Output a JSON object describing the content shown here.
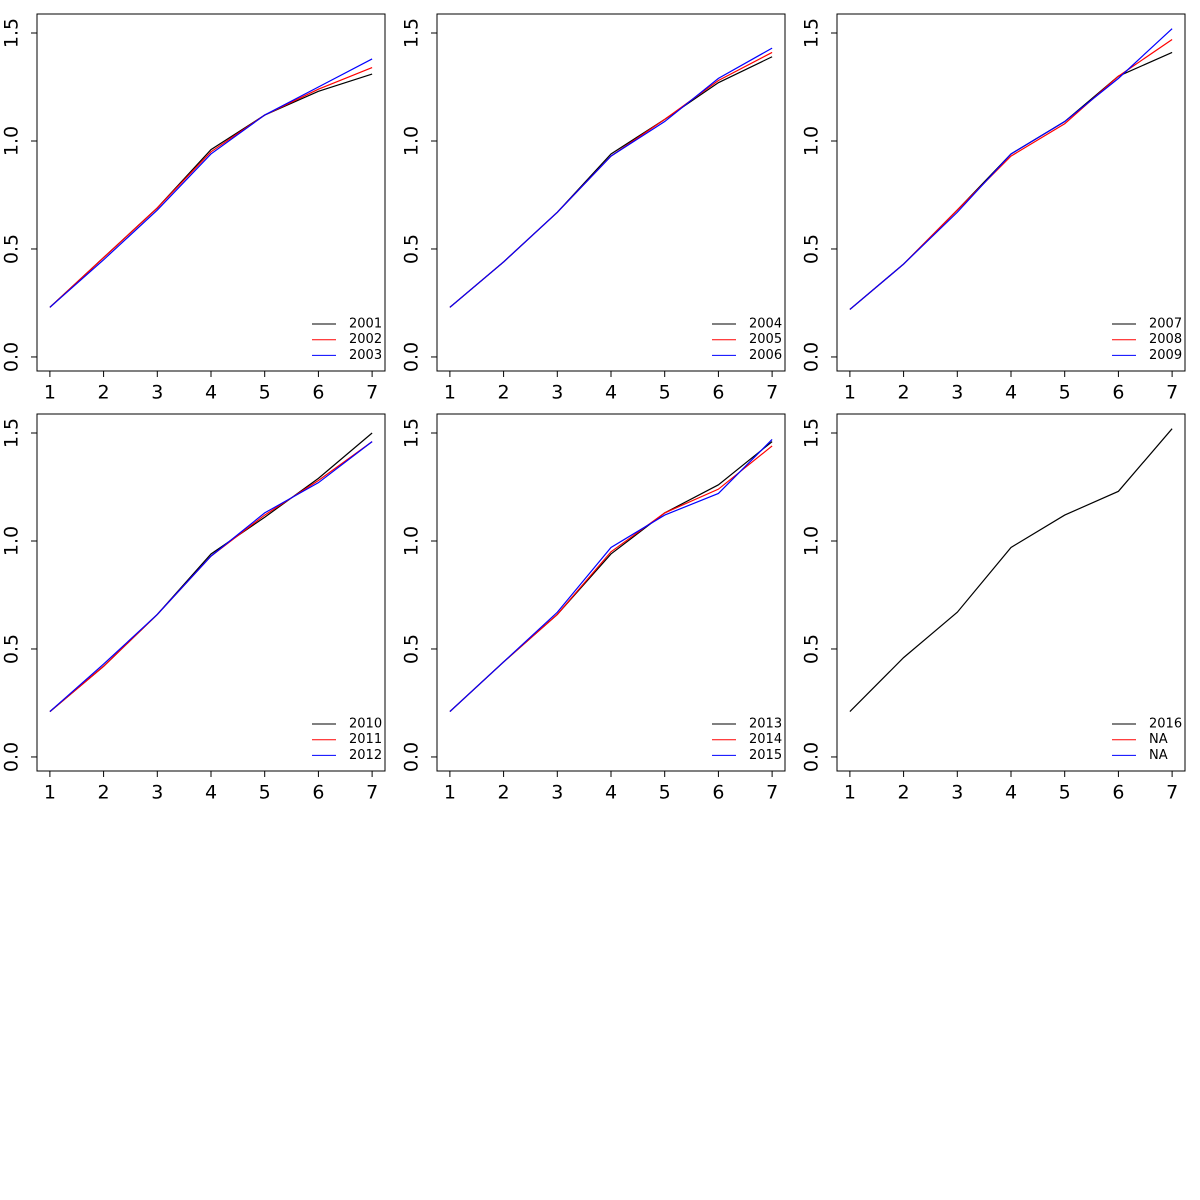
{
  "chart_data": [
    {
      "type": "line",
      "x": [
        1,
        2,
        3,
        4,
        5,
        6,
        7
      ],
      "xlim": [
        0.76,
        7.24
      ],
      "xticks": [
        1,
        2,
        3,
        4,
        5,
        6,
        7
      ],
      "ylim": [
        -0.065,
        1.588
      ],
      "yticks": [
        {
          "value": 0,
          "label": "0.0"
        },
        {
          "value": 0.5,
          "label": "0.5"
        },
        {
          "value": 1,
          "label": "1.0"
        },
        {
          "value": 1.5,
          "label": "1.5"
        }
      ],
      "legend": "bottomright",
      "series": [
        {
          "name": "2001",
          "color": "#000000",
          "values": [
            0.23,
            0.46,
            0.69,
            0.96,
            1.12,
            1.23,
            1.31
          ]
        },
        {
          "name": "2002",
          "color": "#ff0000",
          "values": [
            0.23,
            0.46,
            0.69,
            0.95,
            1.12,
            1.24,
            1.34
          ]
        },
        {
          "name": "2003",
          "color": "#0000ff",
          "values": [
            0.23,
            0.45,
            0.68,
            0.94,
            1.12,
            1.25,
            1.38
          ]
        }
      ]
    },
    {
      "type": "line",
      "x": [
        1,
        2,
        3,
        4,
        5,
        6,
        7
      ],
      "xlim": [
        0.76,
        7.24
      ],
      "xticks": [
        1,
        2,
        3,
        4,
        5,
        6,
        7
      ],
      "ylim": [
        -0.065,
        1.588
      ],
      "yticks": [
        {
          "value": 0,
          "label": "0.0"
        },
        {
          "value": 0.5,
          "label": "0.5"
        },
        {
          "value": 1,
          "label": "1.0"
        },
        {
          "value": 1.5,
          "label": "1.5"
        }
      ],
      "legend": "bottomright",
      "series": [
        {
          "name": "2004",
          "color": "#000000",
          "values": [
            0.23,
            0.44,
            0.67,
            0.94,
            1.1,
            1.27,
            1.39
          ]
        },
        {
          "name": "2005",
          "color": "#ff0000",
          "values": [
            0.23,
            0.44,
            0.67,
            0.93,
            1.1,
            1.28,
            1.41
          ]
        },
        {
          "name": "2006",
          "color": "#0000ff",
          "values": [
            0.23,
            0.44,
            0.67,
            0.93,
            1.09,
            1.29,
            1.43
          ]
        }
      ]
    },
    {
      "type": "line",
      "x": [
        1,
        2,
        3,
        4,
        5,
        6,
        7
      ],
      "xlim": [
        0.76,
        7.24
      ],
      "xticks": [
        1,
        2,
        3,
        4,
        5,
        6,
        7
      ],
      "ylim": [
        -0.065,
        1.588
      ],
      "yticks": [
        {
          "value": 0,
          "label": "0.0"
        },
        {
          "value": 0.5,
          "label": "0.5"
        },
        {
          "value": 1,
          "label": "1.0"
        },
        {
          "value": 1.5,
          "label": "1.5"
        }
      ],
      "legend": "bottomright",
      "series": [
        {
          "name": "2007",
          "color": "#000000",
          "values": [
            0.22,
            0.43,
            0.68,
            0.94,
            1.09,
            1.3,
            1.41
          ]
        },
        {
          "name": "2008",
          "color": "#ff0000",
          "values": [
            0.22,
            0.43,
            0.68,
            0.93,
            1.08,
            1.3,
            1.47
          ]
        },
        {
          "name": "2009",
          "color": "#0000ff",
          "values": [
            0.22,
            0.43,
            0.67,
            0.94,
            1.09,
            1.29,
            1.52
          ]
        }
      ]
    },
    {
      "type": "line",
      "x": [
        1,
        2,
        3,
        4,
        5,
        6,
        7
      ],
      "xlim": [
        0.76,
        7.24
      ],
      "xticks": [
        1,
        2,
        3,
        4,
        5,
        6,
        7
      ],
      "ylim": [
        -0.065,
        1.588
      ],
      "yticks": [
        {
          "value": 0,
          "label": "0.0"
        },
        {
          "value": 0.5,
          "label": "0.5"
        },
        {
          "value": 1,
          "label": "1.0"
        },
        {
          "value": 1.5,
          "label": "1.5"
        }
      ],
      "legend": "bottomright",
      "series": [
        {
          "name": "2010",
          "color": "#000000",
          "values": [
            0.21,
            0.42,
            0.66,
            0.94,
            1.11,
            1.29,
            1.5
          ]
        },
        {
          "name": "2011",
          "color": "#ff0000",
          "values": [
            0.21,
            0.42,
            0.66,
            0.93,
            1.12,
            1.28,
            1.46
          ]
        },
        {
          "name": "2012",
          "color": "#0000ff",
          "values": [
            0.21,
            0.43,
            0.66,
            0.93,
            1.13,
            1.27,
            1.46
          ]
        }
      ]
    },
    {
      "type": "line",
      "x": [
        1,
        2,
        3,
        4,
        5,
        6,
        7
      ],
      "xlim": [
        0.76,
        7.24
      ],
      "xticks": [
        1,
        2,
        3,
        4,
        5,
        6,
        7
      ],
      "ylim": [
        -0.065,
        1.588
      ],
      "yticks": [
        {
          "value": 0,
          "label": "0.0"
        },
        {
          "value": 0.5,
          "label": "0.5"
        },
        {
          "value": 1,
          "label": "1.0"
        },
        {
          "value": 1.5,
          "label": "1.5"
        }
      ],
      "legend": "bottomright",
      "series": [
        {
          "name": "2013",
          "color": "#000000",
          "values": [
            0.21,
            0.44,
            0.66,
            0.94,
            1.13,
            1.26,
            1.46
          ]
        },
        {
          "name": "2014",
          "color": "#ff0000",
          "values": [
            0.21,
            0.44,
            0.66,
            0.95,
            1.13,
            1.24,
            1.44
          ]
        },
        {
          "name": "2015",
          "color": "#0000ff",
          "values": [
            0.21,
            0.44,
            0.67,
            0.97,
            1.12,
            1.22,
            1.47
          ]
        }
      ]
    },
    {
      "type": "line",
      "x": [
        1,
        2,
        3,
        4,
        5,
        6,
        7
      ],
      "xlim": [
        0.76,
        7.24
      ],
      "xticks": [
        1,
        2,
        3,
        4,
        5,
        6,
        7
      ],
      "ylim": [
        -0.065,
        1.588
      ],
      "yticks": [
        {
          "value": 0,
          "label": "0.0"
        },
        {
          "value": 0.5,
          "label": "0.5"
        },
        {
          "value": 1,
          "label": "1.0"
        },
        {
          "value": 1.5,
          "label": "1.5"
        }
      ],
      "legend": "bottomright",
      "series": [
        {
          "name": "2016",
          "color": "#000000",
          "values": [
            0.21,
            0.46,
            0.67,
            0.97,
            1.12,
            1.23,
            1.52
          ]
        },
        {
          "name": "NA",
          "color": "#ff0000",
          "values": [
            null,
            null,
            null,
            null,
            null,
            null,
            null
          ]
        },
        {
          "name": "NA",
          "color": "#0000ff",
          "values": [
            null,
            null,
            null,
            null,
            null,
            null,
            null
          ]
        }
      ]
    }
  ]
}
